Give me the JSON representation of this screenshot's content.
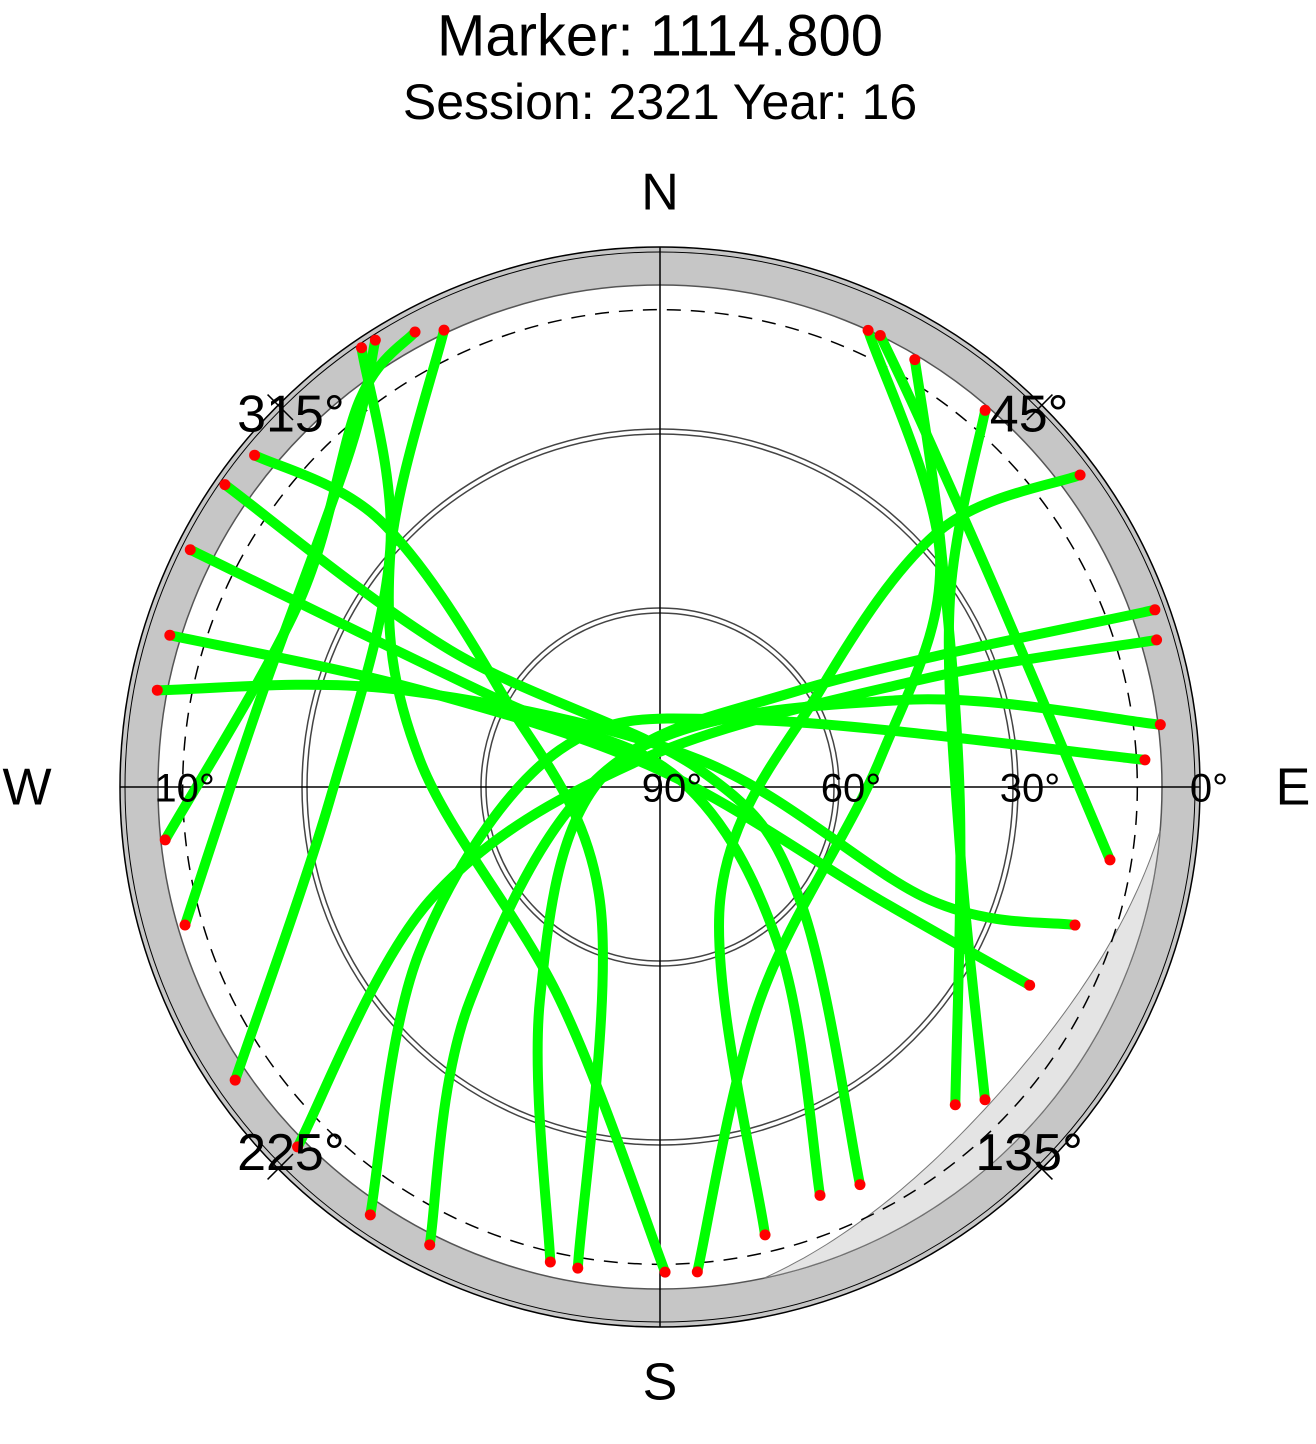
{
  "chart_data": {
    "type": "polar",
    "title": "Marker: 1114.800",
    "subtitle": "Session: 2321 Year: 16",
    "rlim": [
      90,
      0
    ],
    "rticks": [
      {
        "value": 90,
        "label": "90°"
      },
      {
        "value": 60,
        "label": "60°"
      },
      {
        "value": 30,
        "label": "30°"
      },
      {
        "value": 0,
        "label": "0°"
      }
    ],
    "rticks_west": [
      {
        "value": 10,
        "label": "10°"
      }
    ],
    "grid_circles": [
      60,
      30
    ],
    "mask_circle": 10,
    "aticks": [
      {
        "value": 45,
        "label": "45°"
      },
      {
        "value": 135,
        "label": "135°"
      },
      {
        "value": 225,
        "label": "225°"
      },
      {
        "value": 315,
        "label": "315°"
      }
    ],
    "directions": [
      {
        "value": 0,
        "label": "N"
      },
      {
        "value": 90,
        "label": "E"
      },
      {
        "value": 180,
        "label": "S"
      },
      {
        "value": 270,
        "label": "W"
      }
    ],
    "track_color": "#00ff00",
    "end_color": "#ff0000",
    "tracks": [
      {
        "az": [
          334.7,
          310,
          276.4,
          205.2,
          179.4
        ],
        "el": [
          5.3,
          30.9,
          49.5,
          50.6,
          8.7
        ]
      },
      {
        "az": [
          24.5,
          51.0,
          83.0,
          154.8,
          175.6
        ],
        "el": [
          5.9,
          29.6,
          52.9,
          50.6,
          8.5
        ]
      },
      {
        "az": [
          287.2,
          292.0,
          0,
          117.2,
          118.2
        ],
        "el": [
          4.0,
          46.6,
          87.2,
          48.6,
          19.7
        ]
      },
      {
        "az": [
          280.9,
          290.5,
          56.0,
          112.7,
          108.4
        ],
        "el": [
          4.2,
          43.5,
          81.9,
          40.9,
          16.7
        ]
      },
      {
        "az": [
          73.5,
          67.6,
          323.5,
          243.8,
          225.2
        ],
        "el": [
          3.2,
          42.9,
          84.4,
          47.1,
          4.4
        ]
      },
      {
        "az": [
          82.9,
          70.1,
          304,
          221.7,
          206.7
        ],
        "el": [
          5.5,
          47.2,
          81.9,
          42.2,
          4.1
        ]
      },
      {
        "az": [
          309.3,
          313.6,
          301.2,
          208.0,
          189.7
        ],
        "el": [
          2.2,
          25.2,
          58.6,
          68.5,
          8.2
        ]
      },
      {
        "az": [
          53.4,
          47.5,
          58.8,
          152.0,
          166.8
        ],
        "el": [
          2.3,
          26.3,
          58.6,
          68.5,
          12.9
        ]
      },
      {
        "az": [
          263.9,
          297.4,
          322.2,
          331.7
        ],
        "el": [
          6.6,
          22.0,
          7.9,
          3.4
        ]
      },
      {
        "az": [
          99.2,
          61.2,
          35.3,
          26.0
        ],
        "el": [
          13.6,
          25.0,
          14.6,
          5.8
        ]
      },
      {
        "az": [
          253.8,
          282.3,
          317.4,
          327.5
        ],
        "el": [
          7.1,
          21.4,
          13.3,
          1.2
        ]
      },
      {
        "az": [
          137.1,
          92.5,
          48.6,
          30.8
        ],
        "el": [
          17.3,
          39.7,
          27.4,
          6.6
        ]
      },
      {
        "az": [
          235.4,
          267.7,
          311.3,
          325.8
        ],
        "el": [
          3.5,
          34.6,
          29.8,
          1.0
        ]
      },
      {
        "az": [
          133.9,
          101.9,
          57.2,
          40.8
        ],
        "el": [
          14.4,
          38.6,
          32.2,
          6.6
        ]
      },
      {
        "az": [
          214.1,
          235.8,
          290.3,
          53.3,
          86.8
        ],
        "el": [
          3.4,
          41.4,
          72.1,
          71.2,
          8.6
        ]
      },
      {
        "az": [
          193.0,
          209.4,
          276.7,
          55.3,
          70.3
        ],
        "el": [
          8.3,
          49.0,
          79.9,
          61.5,
          1.9
        ]
      },
      {
        "az": [
          158.6,
          143.6,
          70.7,
          298.5,
          296.8
        ],
        "el": [
          16.5,
          56.1,
          86.4,
          59.5,
          1.8
        ]
      },
      {
        "az": [
          153.3,
          128.9,
          67.0,
          303.1,
          304.8
        ],
        "el": [
          15.4,
          59.9,
          82.7,
          48.0,
          1.2
        ]
      }
    ]
  }
}
